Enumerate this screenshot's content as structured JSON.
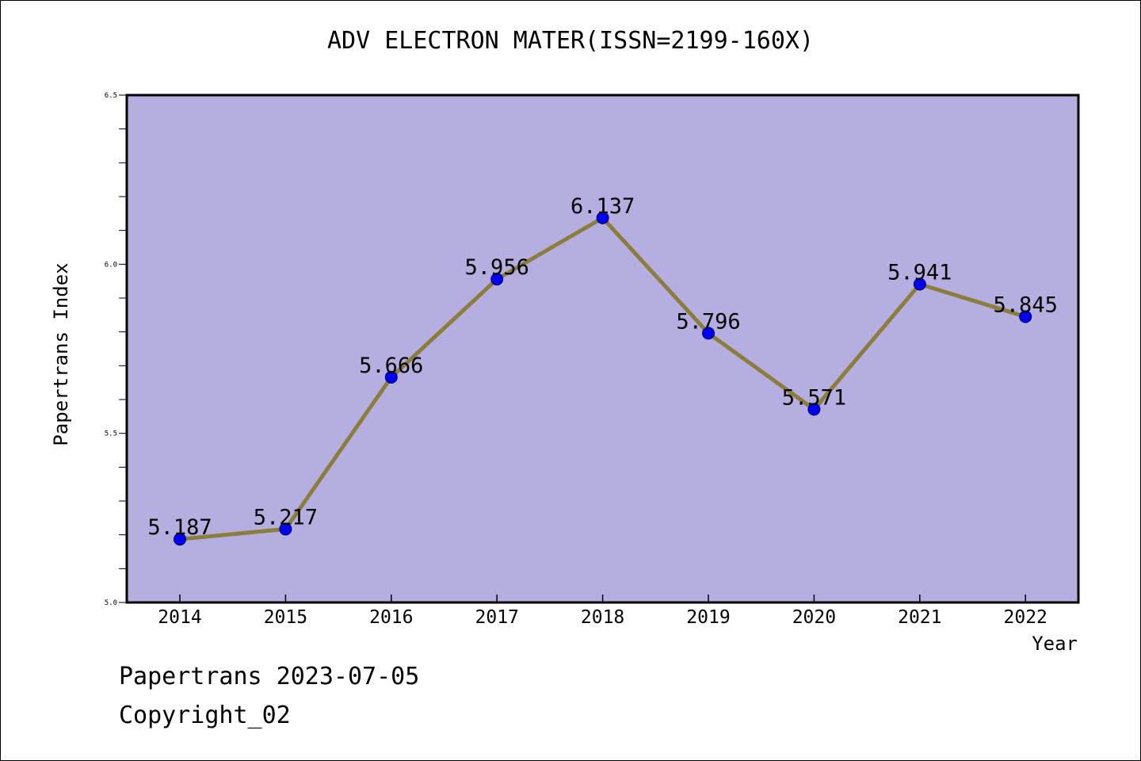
{
  "chart_data": {
    "type": "line",
    "title": "ADV ELECTRON MATER(ISSN=2199-160X)",
    "xlabel": "Year",
    "ylabel": "Papertrans Index",
    "categories": [
      "2014",
      "2015",
      "2016",
      "2017",
      "2018",
      "2019",
      "2020",
      "2021",
      "2022"
    ],
    "values": [
      5.187,
      5.217,
      5.666,
      5.956,
      6.137,
      5.796,
      5.571,
      5.941,
      5.845
    ],
    "data_labels": [
      "5.187",
      "5.217",
      "5.666",
      "5.956",
      "6.137",
      "5.796",
      "5.571",
      "5.941",
      "5.845"
    ],
    "ylim": [
      5.0,
      6.5
    ],
    "y_ticks": [
      5.0,
      5.5,
      6.0,
      6.5
    ],
    "y_tick_labels": [
      "5.0",
      "5.5",
      "6.0",
      "6.5"
    ],
    "y_minor_step": 0.1,
    "grid": false,
    "colors": {
      "plot_background": "#b5aee1",
      "line": "#8b7d3c",
      "marker": "#0000ee",
      "axis": "#000000"
    }
  },
  "footer": {
    "date": "Papertrans 2023-07-05",
    "copyright": "Copyright_02"
  }
}
